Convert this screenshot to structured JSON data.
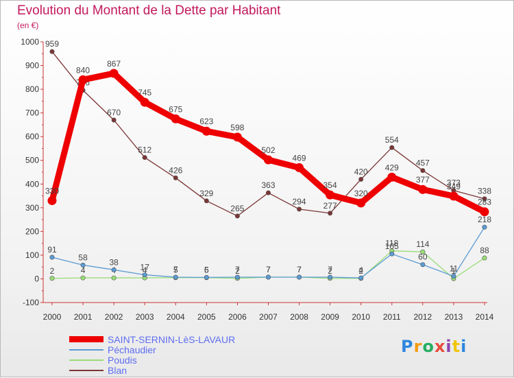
{
  "title": "Evolution du Montant de la Dette par Habitant",
  "unit": "(en €)",
  "logo": {
    "letters": [
      "P",
      "r",
      "o",
      "x",
      "i",
      "t",
      "i"
    ],
    "colors": [
      "#2e86de",
      "#f39c12",
      "#27ae60",
      "#e74c3c",
      "#8e44ad",
      "#f1c40f",
      "#2e86de"
    ]
  },
  "chart_data": {
    "type": "line",
    "title": "Evolution du Montant de la Dette par Habitant",
    "ylabel": "(en €)",
    "xlabel": "",
    "categories": [
      "2000",
      "2001",
      "2002",
      "2003",
      "2004",
      "2005",
      "2006",
      "2007",
      "2008",
      "2009",
      "2010",
      "2011",
      "2012",
      "2013",
      "2014"
    ],
    "ylim": [
      -100,
      1000
    ],
    "yticks": [
      -100,
      0,
      100,
      200,
      300,
      400,
      500,
      600,
      700,
      800,
      900,
      1000
    ],
    "grid": false,
    "legend_position": "bottom-left",
    "series": [
      {
        "name": "SAINT-SERNIN-LèS-LAVAUR",
        "color": "#ee0000",
        "values": [
          330,
          840,
          867,
          745,
          675,
          623,
          598,
          502,
          469,
          354,
          320,
          429,
          377,
          349,
          283
        ]
      },
      {
        "name": "Péchaudier",
        "color": "#5a9bd4",
        "values": [
          91,
          58,
          38,
          17,
          7,
          6,
          7,
          7,
          7,
          7,
          4,
          105,
          60,
          11,
          218
        ]
      },
      {
        "name": "Poudis",
        "color": "#99dd77",
        "values": [
          2,
          4,
          4,
          4,
          5,
          5,
          2,
          7,
          7,
          2,
          2,
          118,
          114,
          1,
          88
        ]
      },
      {
        "name": "Blan",
        "color": "#7b3535",
        "values": [
          959,
          796,
          670,
          512,
          426,
          329,
          265,
          363,
          294,
          277,
          420,
          554,
          457,
          373,
          338
        ]
      }
    ]
  }
}
